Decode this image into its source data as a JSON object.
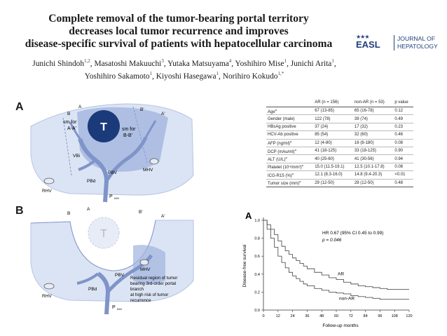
{
  "header": {
    "title_lines": [
      "Complete removal of the tumor-bearing portal territory",
      "decreases local tumor recurrence and improves",
      "disease-specific survival of patients with hepatocellular carcinoma"
    ],
    "authors_lines": [
      [
        {
          "name": "Junichi Shindoh",
          "sup": "1,2"
        },
        {
          "name": "Masatoshi Makuuchi",
          "sup": "3"
        },
        {
          "name": "Yutaka Matsuyama",
          "sup": "4"
        },
        {
          "name": "Yoshihiro Mise",
          "sup": "1"
        },
        {
          "name": "Junichi Arita",
          "sup": "1"
        }
      ],
      [
        {
          "name": "Yoshihiro Sakamoto",
          "sup": "1"
        },
        {
          "name": "Kiyoshi Hasegawa",
          "sup": "1"
        },
        {
          "name": "Norihiro Kokudo",
          "sup": "1,*"
        }
      ]
    ]
  },
  "logo": {
    "stars": "★★★",
    "org": "EASL",
    "journal_line1": "JOURNAL OF",
    "journal_line2": "HEPATOLOGY",
    "color": "#1f3f78"
  },
  "panel_a": {
    "letter": "A",
    "labels": {
      "B": "B",
      "A": "A",
      "Bp": "B'",
      "Ap": "A'",
      "T": "T",
      "sm_left_1": "sm for",
      "sm_left_2": "A-A'",
      "sm_right_1": "sm for",
      "sm_right_2": "B-B'",
      "vbi": "VBi",
      "mhv": "MHV",
      "rhv": "RHV",
      "pbv": "PBV",
      "pbd": "PBd",
      "pm": "P",
      "pm_sub": "II/M"
    }
  },
  "panel_b": {
    "letter": "B",
    "labels": {
      "B": "B",
      "A": "A",
      "Bp": "B'",
      "Ap": "A'",
      "T": "T",
      "mhv": "MHV",
      "rhv": "RHV",
      "pbv": "PBV",
      "pbd": "PBd",
      "pm": "P",
      "pm_sub": "II/M",
      "residual_1": "Residual region of tumor",
      "residual_2": "bearing 3rd-order portal",
      "residual_3": "branch",
      "residual_4": "at high risk of tumor",
      "residual_5": "recurrence"
    }
  },
  "table": {
    "headers": [
      "",
      "AR (n = 156)",
      "non-AR (n = 53)",
      "p value"
    ],
    "rows": [
      {
        "label": "Age",
        "sup": "a",
        "ar": "67 (13-85)",
        "nonar": "65 (16-78)",
        "p": "0.12"
      },
      {
        "label": "Gender (male)",
        "sup": "",
        "ar": "122 (78)",
        "nonar": "39 (74)",
        "p": "0.49"
      },
      {
        "label": "HBsAg positive",
        "sup": "",
        "ar": "37 (24)",
        "nonar": "17 (32)",
        "p": "0.23"
      },
      {
        "label": "HCV-Ab positive",
        "sup": "",
        "ar": "85 (54)",
        "nonar": "32 (60)",
        "p": "0.46"
      },
      {
        "label": "AFP (ng/ml)",
        "sup": "a",
        "ar": "12 (4-80)",
        "nonar": "16 (8-180)",
        "p": "0.08"
      },
      {
        "label": "DCP (mAu/ml)",
        "sup": "a",
        "ar": "41 (18-125)",
        "nonar": "33 (18-125)",
        "p": "0.90"
      },
      {
        "label": "ALT (U/L)",
        "sup": "a",
        "ar": "40 (25-60)",
        "nonar": "41 (30-56)",
        "p": "0.94"
      },
      {
        "label": "Platelet (10⁴/mm³)",
        "sup": "a",
        "ar": "15.0 (11.5-19.1)",
        "nonar": "12.5 (10.1-17.8)",
        "p": "0.08"
      },
      {
        "label": "ICG-R15 (%)",
        "sup": "a",
        "ar": "12.1 (8.3-16.0)",
        "nonar": "14.8 (9.4-20.3)",
        "p": "<0.01"
      },
      {
        "label": "Tumor size (mm)",
        "sup": "a",
        "ar": "29 (12-50)",
        "nonar": "28 (12-50)",
        "p": "0.48"
      }
    ]
  },
  "chart_data": {
    "type": "line",
    "panel_letter": "A",
    "ylabel": "Disease-free survival",
    "xlabel": "Follow-up months",
    "xlim": [
      0,
      120
    ],
    "ylim": [
      0,
      1.0
    ],
    "xticks": [
      0,
      12,
      24,
      36,
      48,
      60,
      72,
      84,
      96,
      108,
      120
    ],
    "yticks": [
      0,
      0.2,
      0.4,
      0.6,
      0.8,
      1.0
    ],
    "annotation_line1": "HR 0.67 (95% CI 0.45 to 0.99)",
    "annotation_line2": "p = 0.046",
    "series": [
      {
        "name": "AR",
        "x": [
          0,
          3,
          6,
          9,
          12,
          15,
          18,
          21,
          24,
          27,
          30,
          33,
          36,
          42,
          48,
          54,
          60,
          66,
          72,
          78,
          84,
          90,
          96,
          102,
          108,
          114,
          120
        ],
        "y": [
          1.0,
          0.95,
          0.9,
          0.84,
          0.77,
          0.71,
          0.66,
          0.62,
          0.58,
          0.55,
          0.52,
          0.49,
          0.46,
          0.42,
          0.39,
          0.36,
          0.34,
          0.31,
          0.29,
          0.27,
          0.26,
          0.25,
          0.24,
          0.23,
          0.23,
          0.23,
          0.23
        ],
        "color": "#555555"
      },
      {
        "name": "non-AR",
        "x": [
          0,
          3,
          6,
          9,
          12,
          15,
          18,
          21,
          24,
          27,
          30,
          33,
          36,
          42,
          48,
          54,
          60,
          66,
          72,
          78,
          84,
          90,
          96,
          102,
          108
        ],
        "y": [
          1.0,
          0.9,
          0.8,
          0.7,
          0.6,
          0.53,
          0.47,
          0.42,
          0.38,
          0.35,
          0.32,
          0.29,
          0.27,
          0.24,
          0.22,
          0.2,
          0.19,
          0.18,
          0.16,
          0.15,
          0.14,
          0.13,
          0.12,
          0.12,
          0.12
        ],
        "color": "#555555"
      }
    ]
  }
}
